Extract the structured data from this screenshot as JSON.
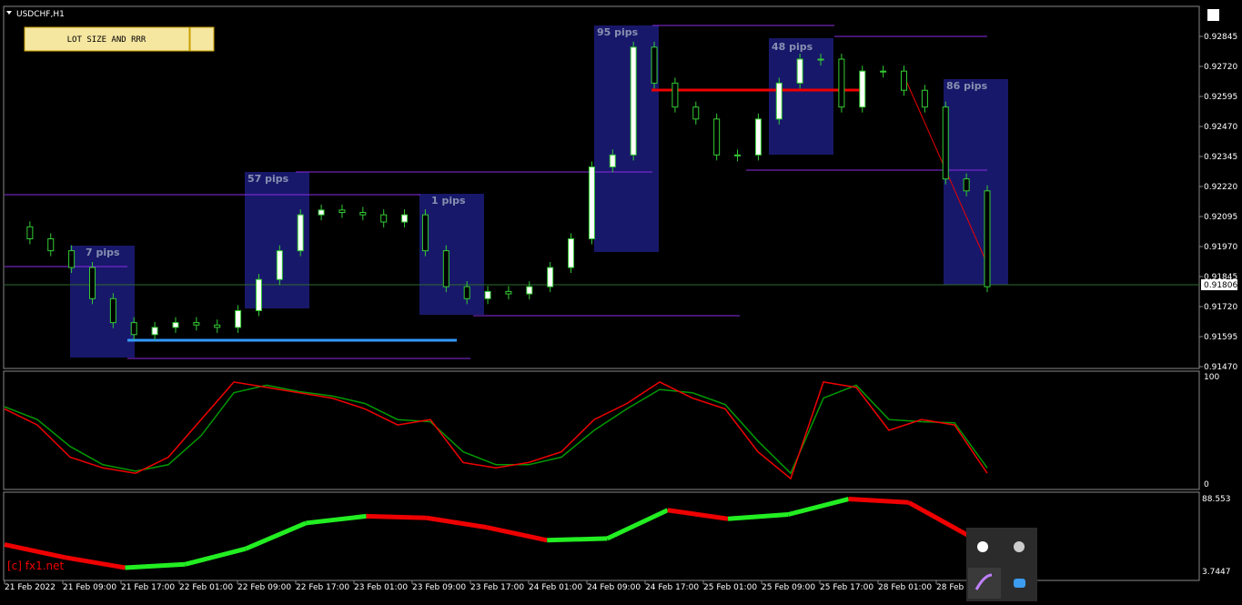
{
  "ui": {
    "symbol": "USDCHF,H1",
    "button": "LOT SIZE AND RRR",
    "watermark": "[c] fx1.net",
    "price_labels": [
      "0.92845",
      "0.92720",
      "0.92595",
      "0.92470",
      "0.92345",
      "0.92220",
      "0.92095",
      "0.91970",
      "0.91845",
      "0.91720",
      "0.91595",
      "0.91470"
    ],
    "current_price": "0.91806",
    "pip_boxes": [
      "7 pips",
      "57 pips",
      "1 pips",
      "95 pips",
      "48 pips",
      "86 pips"
    ],
    "time_labels": [
      "21 Feb 2022",
      "21 Feb 09:00",
      "21 Feb 17:00",
      "22 Feb 01:00",
      "22 Feb 09:00",
      "22 Feb 17:00",
      "23 Feb 01:00",
      "23 Feb 09:00",
      "23 Feb 17:00",
      "24 Feb 01:00",
      "24 Feb 09:00",
      "24 Feb 17:00",
      "25 Feb 01:00",
      "25 Feb 09:00",
      "25 Feb 17:00",
      "28 Feb 01:00",
      "28 Feb"
    ],
    "stoch_labels": [
      "100",
      "0"
    ],
    "trend_labels": [
      "88.553",
      "3.7447"
    ],
    "candles": {
      "closes": [
        0.9205,
        0.92,
        0.9195,
        0.9188,
        0.9175,
        0.9165,
        0.916,
        0.9163,
        0.9165,
        0.9164,
        0.9163,
        0.917,
        0.9183,
        0.9195,
        0.921,
        0.9212,
        0.9211,
        0.921,
        0.9207,
        0.921,
        0.9195,
        0.918,
        0.9175,
        0.9178,
        0.9177,
        0.918,
        0.9188,
        0.92,
        0.923,
        0.9235,
        0.928,
        0.9265,
        0.9255,
        0.925,
        0.9235,
        0.9235,
        0.925,
        0.9265,
        0.9275,
        0.9275,
        0.9255,
        0.927,
        0.927,
        0.9262,
        0.9255,
        0.9225,
        0.922,
        0.918
      ]
    },
    "stoch_main": [
      70,
      55,
      25,
      15,
      10,
      25,
      60,
      95,
      90,
      85,
      80,
      70,
      55,
      60,
      20,
      15,
      20,
      30,
      60,
      75,
      95,
      80,
      70,
      30,
      5,
      95,
      90,
      50,
      60,
      55,
      10
    ],
    "stoch_signal": [
      72,
      60,
      35,
      18,
      12,
      18,
      45,
      85,
      92,
      86,
      82,
      75,
      60,
      58,
      30,
      18,
      18,
      25,
      50,
      70,
      88,
      85,
      74,
      40,
      10,
      80,
      92,
      60,
      58,
      57,
      15
    ],
    "trend": [
      35,
      20,
      8,
      12,
      30,
      60,
      68,
      66,
      55,
      40,
      42,
      75,
      65,
      70,
      88,
      84,
      45
    ]
  }
}
